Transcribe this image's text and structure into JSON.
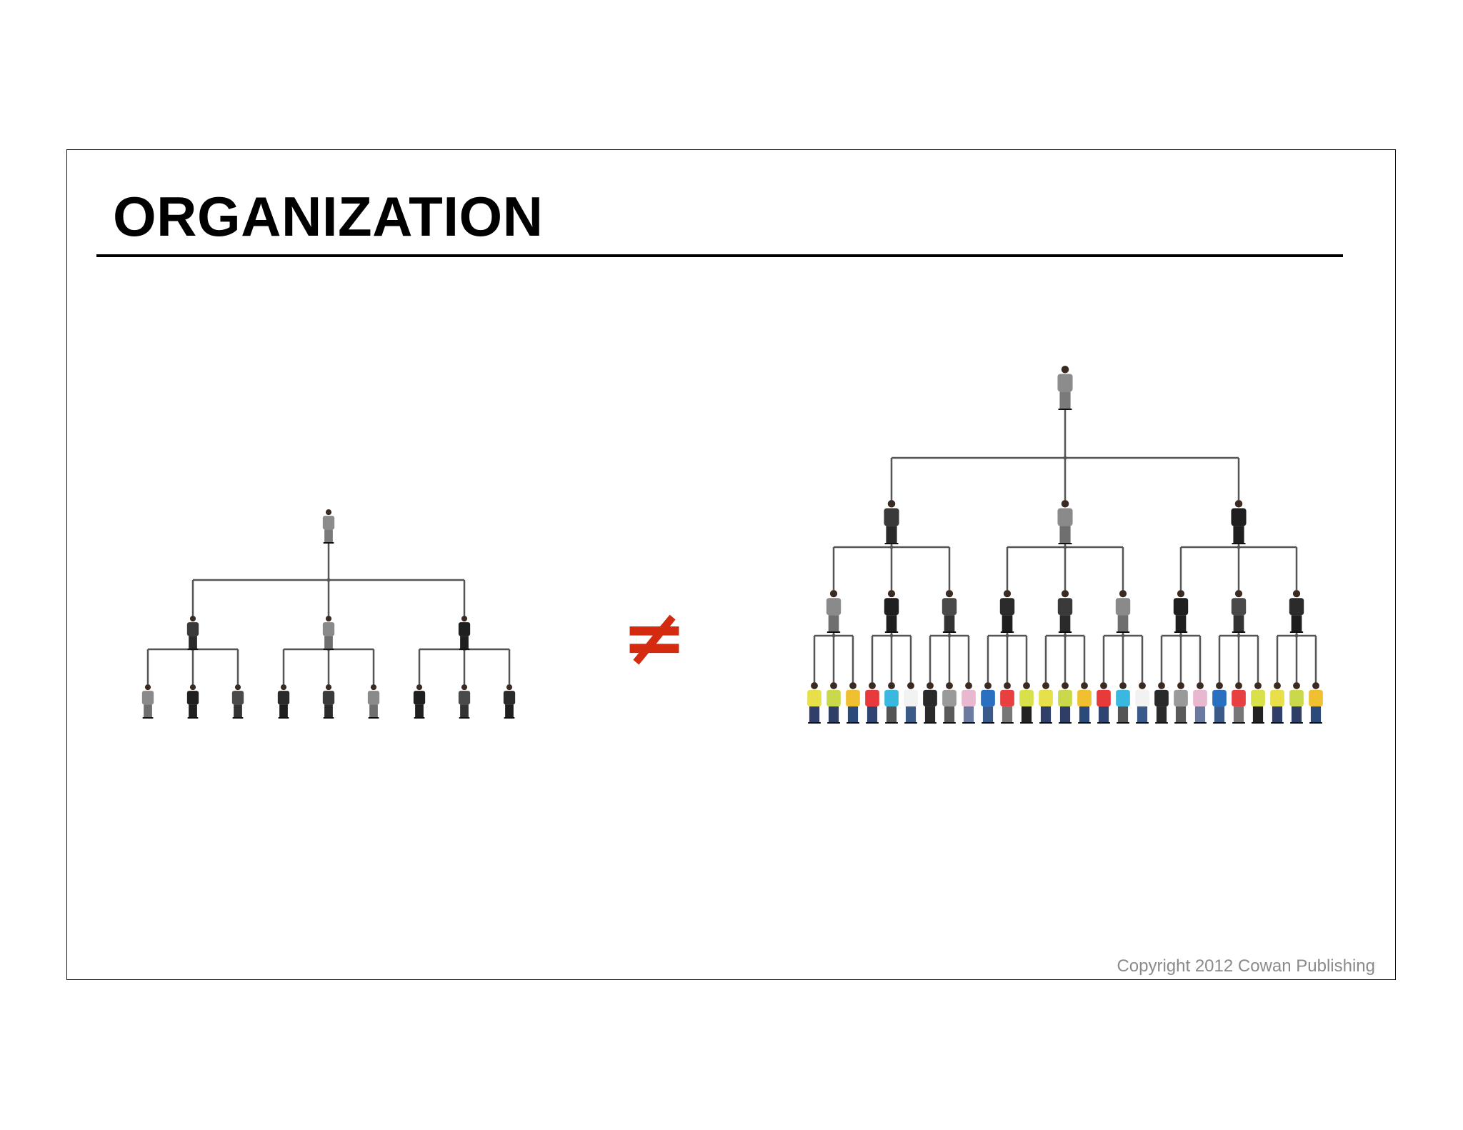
{
  "slide": {
    "title": "ORGANIZATION",
    "copyright": "Copyright 2012 Cowan Publishing"
  },
  "diagram": {
    "relation_symbol": "≠",
    "relation_color": "#d42a10",
    "connector_color": "#555555",
    "small_org": {
      "levels": 3,
      "branching": 3,
      "people_per_level": [
        1,
        3,
        9
      ]
    },
    "large_org": {
      "levels": 4,
      "branching": 3,
      "people_per_level": [
        1,
        3,
        9,
        27
      ]
    }
  },
  "icons": {
    "person": "person-figure-icon"
  }
}
